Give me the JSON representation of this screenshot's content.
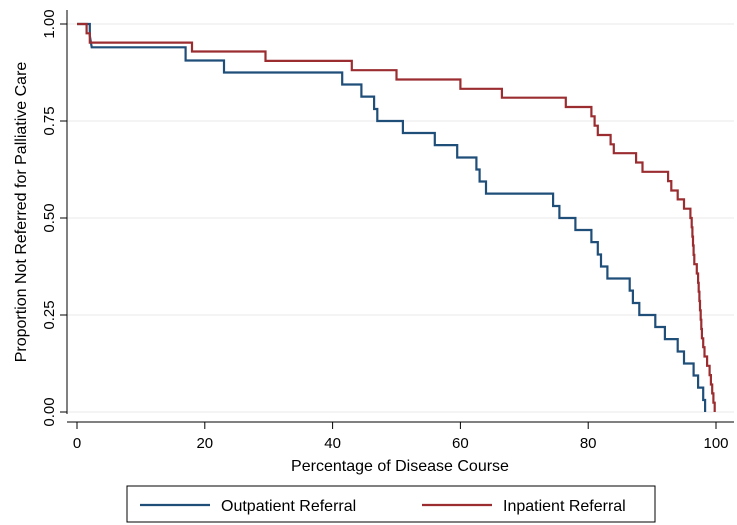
{
  "chart_data": {
    "type": "line",
    "step": true,
    "xlabel": "Percentage of Disease Course",
    "ylabel": "Proportion Not Referred for Palliative Care",
    "xlim": [
      0,
      100
    ],
    "ylim": [
      0,
      1
    ],
    "xticks": [
      "0",
      "20",
      "40",
      "60",
      "80",
      "100"
    ],
    "yticks": [
      "0.00",
      "0.25",
      "0.50",
      "0.75",
      "1.00"
    ],
    "grid": true,
    "legend_position": "bottom",
    "series": [
      {
        "name": "Outpatient Referral",
        "color": "#1f4e79",
        "points": [
          [
            0,
            1
          ],
          [
            2,
            1
          ],
          [
            2,
            0.97
          ],
          [
            2.3,
            0.94
          ],
          [
            17,
            0.94
          ],
          [
            17,
            0.906
          ],
          [
            23,
            0.906
          ],
          [
            23,
            0.875
          ],
          [
            41.5,
            0.875
          ],
          [
            41.5,
            0.844
          ],
          [
            44.5,
            0.844
          ],
          [
            44.5,
            0.813
          ],
          [
            46.5,
            0.813
          ],
          [
            46.5,
            0.781
          ],
          [
            47,
            0.781
          ],
          [
            47,
            0.75
          ],
          [
            51,
            0.75
          ],
          [
            51,
            0.719
          ],
          [
            56,
            0.719
          ],
          [
            56,
            0.688
          ],
          [
            59.5,
            0.688
          ],
          [
            59.5,
            0.656
          ],
          [
            62.5,
            0.656
          ],
          [
            62.5,
            0.625
          ],
          [
            63,
            0.625
          ],
          [
            63,
            0.594
          ],
          [
            64,
            0.594
          ],
          [
            64,
            0.563
          ],
          [
            74.5,
            0.563
          ],
          [
            74.5,
            0.531
          ],
          [
            75.5,
            0.531
          ],
          [
            75.5,
            0.5
          ],
          [
            78,
            0.5
          ],
          [
            78,
            0.469
          ],
          [
            80.5,
            0.469
          ],
          [
            80.5,
            0.438
          ],
          [
            81.5,
            0.438
          ],
          [
            81.5,
            0.406
          ],
          [
            82,
            0.406
          ],
          [
            82,
            0.375
          ],
          [
            83,
            0.375
          ],
          [
            83,
            0.344
          ],
          [
            86.5,
            0.344
          ],
          [
            86.5,
            0.313
          ],
          [
            87,
            0.313
          ],
          [
            87,
            0.281
          ],
          [
            88,
            0.281
          ],
          [
            88,
            0.25
          ],
          [
            90.5,
            0.25
          ],
          [
            90.5,
            0.219
          ],
          [
            92,
            0.219
          ],
          [
            92,
            0.188
          ],
          [
            94,
            0.188
          ],
          [
            94,
            0.156
          ],
          [
            95,
            0.156
          ],
          [
            95,
            0.125
          ],
          [
            96.5,
            0.125
          ],
          [
            96.5,
            0.094
          ],
          [
            97.2,
            0.094
          ],
          [
            97.2,
            0.063
          ],
          [
            98,
            0.063
          ],
          [
            98,
            0.031
          ],
          [
            98.3,
            0.031
          ],
          [
            98.3,
            0
          ]
        ]
      },
      {
        "name": "Inpatient Referral",
        "color": "#9b2d30",
        "points": [
          [
            0,
            1
          ],
          [
            1.5,
            1
          ],
          [
            1.5,
            0.976
          ],
          [
            2,
            0.976
          ],
          [
            2,
            0.952
          ],
          [
            18,
            0.952
          ],
          [
            18,
            0.929
          ],
          [
            29.5,
            0.929
          ],
          [
            29.5,
            0.905
          ],
          [
            43,
            0.905
          ],
          [
            43,
            0.881
          ],
          [
            50,
            0.881
          ],
          [
            50,
            0.857
          ],
          [
            60,
            0.857
          ],
          [
            60,
            0.833
          ],
          [
            66.5,
            0.833
          ],
          [
            66.5,
            0.81
          ],
          [
            76.5,
            0.81
          ],
          [
            76.5,
            0.786
          ],
          [
            80.5,
            0.786
          ],
          [
            80.5,
            0.762
          ],
          [
            81,
            0.762
          ],
          [
            81,
            0.738
          ],
          [
            81.5,
            0.738
          ],
          [
            81.5,
            0.714
          ],
          [
            83.5,
            0.714
          ],
          [
            83.5,
            0.69
          ],
          [
            84,
            0.69
          ],
          [
            84,
            0.667
          ],
          [
            87.5,
            0.667
          ],
          [
            87.5,
            0.643
          ],
          [
            88.5,
            0.643
          ],
          [
            88.5,
            0.619
          ],
          [
            92.5,
            0.619
          ],
          [
            92.5,
            0.595
          ],
          [
            93,
            0.595
          ],
          [
            93,
            0.571
          ],
          [
            94,
            0.571
          ],
          [
            94,
            0.548
          ],
          [
            95,
            0.548
          ],
          [
            95,
            0.524
          ],
          [
            96,
            0.524
          ],
          [
            96,
            0.5
          ],
          [
            96.2,
            0.5
          ],
          [
            96.2,
            0.476
          ],
          [
            96.3,
            0.476
          ],
          [
            96.3,
            0.452
          ],
          [
            96.4,
            0.452
          ],
          [
            96.4,
            0.429
          ],
          [
            96.5,
            0.429
          ],
          [
            96.5,
            0.405
          ],
          [
            96.6,
            0.405
          ],
          [
            96.6,
            0.381
          ],
          [
            97,
            0.381
          ],
          [
            97,
            0.357
          ],
          [
            97.2,
            0.357
          ],
          [
            97.2,
            0.333
          ],
          [
            97.3,
            0.333
          ],
          [
            97.3,
            0.31
          ],
          [
            97.4,
            0.31
          ],
          [
            97.4,
            0.286
          ],
          [
            97.5,
            0.286
          ],
          [
            97.5,
            0.262
          ],
          [
            97.6,
            0.262
          ],
          [
            97.6,
            0.238
          ],
          [
            97.7,
            0.238
          ],
          [
            97.7,
            0.214
          ],
          [
            97.8,
            0.214
          ],
          [
            97.8,
            0.19
          ],
          [
            98,
            0.19
          ],
          [
            98,
            0.167
          ],
          [
            98.2,
            0.167
          ],
          [
            98.2,
            0.143
          ],
          [
            98.6,
            0.143
          ],
          [
            98.6,
            0.119
          ],
          [
            99,
            0.119
          ],
          [
            99,
            0.095
          ],
          [
            99.2,
            0.095
          ],
          [
            99.2,
            0.071
          ],
          [
            99.4,
            0.071
          ],
          [
            99.4,
            0.048
          ],
          [
            99.6,
            0.048
          ],
          [
            99.6,
            0.024
          ],
          [
            99.8,
            0.024
          ],
          [
            99.8,
            0
          ]
        ]
      }
    ]
  }
}
